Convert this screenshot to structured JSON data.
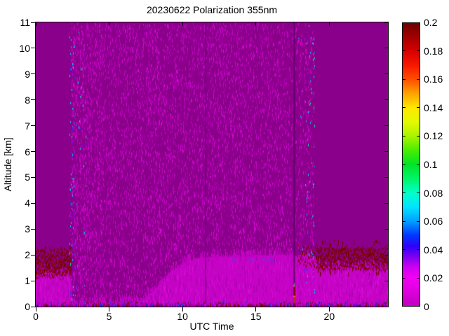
{
  "chart": {
    "title": "20230622 Polarization 355nm",
    "xlabel": "UTC Time",
    "ylabel": "Altitude [km]",
    "x_tick_labels": [
      "0",
      "5",
      "10",
      "15",
      "20"
    ],
    "x_tick_values": [
      0,
      5,
      10,
      15,
      20
    ],
    "y_tick_labels": [
      "0",
      "1",
      "2",
      "3",
      "4",
      "5",
      "6",
      "7",
      "8",
      "9",
      "10",
      "11"
    ],
    "y_tick_values": [
      0,
      1,
      2,
      3,
      4,
      5,
      6,
      7,
      8,
      9,
      10,
      11
    ],
    "x_range": [
      0,
      24
    ],
    "y_range": [
      0,
      11
    ]
  },
  "colorbar": {
    "range": [
      0,
      0.2
    ],
    "tick_labels": [
      "0",
      "0.02",
      "0.04",
      "0.06",
      "0.08",
      "0.1",
      "0.12",
      "0.14",
      "0.16",
      "0.18",
      "0.2"
    ],
    "tick_values": [
      0,
      0.02,
      0.04,
      0.06,
      0.08,
      0.1,
      0.12,
      0.14,
      0.16,
      0.18,
      0.2
    ],
    "stops": [
      {
        "v": 0.0,
        "c": "#C000C0"
      },
      {
        "v": 0.01,
        "c": "#DD00DD"
      },
      {
        "v": 0.02,
        "c": "#F400F4"
      },
      {
        "v": 0.028,
        "c": "#C800F0"
      },
      {
        "v": 0.035,
        "c": "#7A00F0"
      },
      {
        "v": 0.042,
        "c": "#3000F8"
      },
      {
        "v": 0.05,
        "c": "#0038FF"
      },
      {
        "v": 0.06,
        "c": "#00A0FF"
      },
      {
        "v": 0.07,
        "c": "#00E4FF"
      },
      {
        "v": 0.08,
        "c": "#00FFC8"
      },
      {
        "v": 0.09,
        "c": "#00F468"
      },
      {
        "v": 0.1,
        "c": "#00E428"
      },
      {
        "v": 0.11,
        "c": "#48EE00"
      },
      {
        "v": 0.12,
        "c": "#A8F400"
      },
      {
        "v": 0.13,
        "c": "#E4FA00"
      },
      {
        "v": 0.14,
        "c": "#FFE800"
      },
      {
        "v": 0.15,
        "c": "#FFA400"
      },
      {
        "v": 0.16,
        "c": "#FF5000"
      },
      {
        "v": 0.17,
        "c": "#F81800"
      },
      {
        "v": 0.18,
        "c": "#D80000"
      },
      {
        "v": 0.19,
        "c": "#A40000"
      },
      {
        "v": 0.2,
        "c": "#6E0000"
      }
    ]
  },
  "chart_data": {
    "type": "heatmap",
    "title": "20230622 Polarization 355nm",
    "xlabel": "UTC Time",
    "ylabel": "Altitude [km]",
    "x_range_hours": [
      0,
      24
    ],
    "y_range_km": [
      0,
      11
    ],
    "value_range": [
      0,
      0.2
    ],
    "legend_position": "right-colorbar",
    "grid": false,
    "features": {
      "background_color": "#8B008B",
      "background_value": "~0 depolarization (solid magenta before 2.4 UTC and after 19 UTC)",
      "noise_region": {
        "t": [
          2.45,
          18.95
        ],
        "alt": [
          0,
          11
        ],
        "desc": "full-column speckle noise of slightly elevated values while lidar measuring",
        "speckle_colors": [
          "#C303C3",
          "#B300B3",
          "#D409D4"
        ]
      },
      "left_stripe": {
        "t": [
          2.33,
          3.4
        ],
        "alt": [
          0,
          11
        ],
        "desc": "cyan/blue speckle column at measurement start ~0.04-0.08",
        "colors": [
          "#00CCFF",
          "#2438F8",
          "#00E890",
          "#7A00F0",
          "#E400E4"
        ]
      },
      "right_stripe": {
        "t": [
          17.9,
          19.02
        ],
        "alt": [
          0,
          11
        ],
        "desc": "cyan/blue speckle column at measurement end ~0.04-0.08",
        "colors": [
          "#00CCFF",
          "#2438F8",
          "#00E890"
        ]
      },
      "boundary_layer_band": {
        "desc": "bright magenta low-depol boundary layer, top rises from ~0.13 km at 6.8 UTC to ~1.9-2.0 km at 11-19 UTC; ~1.35 km before 2.4 UTC; ~1.55 km after 19 UTC",
        "bright_color": "#C403C4",
        "streak_light": "#D50AD5",
        "streak_dark": "#AE00AE",
        "profile": [
          [
            0,
            1.4
          ],
          [
            2.4,
            1.32
          ],
          [
            2.44,
            0.13
          ],
          [
            6.8,
            0.14
          ],
          [
            7.4,
            0.32
          ],
          [
            8.4,
            0.85
          ],
          [
            9.4,
            1.45
          ],
          [
            10.2,
            1.75
          ],
          [
            11,
            1.9
          ],
          [
            12.5,
            1.93
          ],
          [
            14,
            1.97
          ],
          [
            16,
            2.02
          ],
          [
            17.5,
            1.98
          ],
          [
            18.93,
            1.95
          ],
          [
            19.1,
            1.62
          ],
          [
            20,
            1.58
          ],
          [
            22,
            1.55
          ],
          [
            24,
            1.58
          ]
        ]
      },
      "maroon_left": {
        "t": [
          0,
          2.42
        ],
        "alt": [
          1.05,
          2.35
        ],
        "desc": "high depolarization (~0.2) speckle layer above boundary layer before measurement start",
        "colors": [
          "#750404",
          "#8E0505"
        ]
      },
      "maroon_right": {
        "t": [
          17.85,
          24
        ],
        "alt": [
          1.25,
          2.6
        ],
        "desc": "high depolarization (~0.2) speckle layer 1.4-2.6 km after ~19 UTC",
        "colors": [
          "#750404",
          "#8E0505"
        ]
      },
      "band_top_blue_dots": {
        "t": [
          13.35,
          14.5,
          15.45,
          15.9
        ],
        "alt": 1.86,
        "color": "#3848F0"
      },
      "dark_column_1": {
        "t": 11.55,
        "desc": "thin dark gap column",
        "color": "rgba(96,0,112,0.75)"
      },
      "dark_column_2": {
        "t": 17.6,
        "desc": "dark gap column with small high-depol plume at bottom",
        "color": "rgba(92,0,100,0.8)",
        "plume": {
          "alt": [
            0.15,
            0.8
          ],
          "colors": [
            "#7A0404",
            "#C83C00",
            "#FF7800",
            "#8B0000"
          ],
          "cap_colors": [
            "#00E060",
            "#00C8FF"
          ]
        }
      },
      "surface_strip": {
        "alt": [
          0,
          0.1
        ],
        "desc": "mixed maroon/blue/violet/magenta speckles along ground line",
        "colors": [
          "#7A0404",
          "#CC00CC",
          "#6A00CC",
          "#2836D8",
          "#9A009A"
        ]
      }
    }
  }
}
